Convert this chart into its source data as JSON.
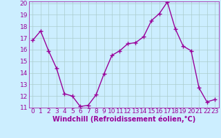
{
  "x": [
    0,
    1,
    2,
    3,
    4,
    5,
    6,
    7,
    8,
    9,
    10,
    11,
    12,
    13,
    14,
    15,
    16,
    17,
    18,
    19,
    20,
    21,
    22,
    23
  ],
  "y": [
    16.8,
    17.6,
    15.9,
    14.4,
    12.2,
    12.0,
    11.1,
    11.2,
    12.1,
    13.9,
    15.5,
    15.9,
    16.5,
    16.6,
    17.1,
    18.5,
    19.1,
    20.1,
    17.8,
    16.3,
    15.9,
    12.7,
    11.5,
    11.7
  ],
  "line_color": "#990099",
  "marker": "+",
  "marker_size": 4,
  "marker_lw": 1.0,
  "bg_color": "#cceeff",
  "grid_color": "#aacccc",
  "xlabel": "Windchill (Refroidissement éolien,°C)",
  "xlabel_color": "#990099",
  "tick_color": "#990099",
  "ylim": [
    11,
    20
  ],
  "xlim_min": -0.5,
  "xlim_max": 23.5,
  "yticks": [
    11,
    12,
    13,
    14,
    15,
    16,
    17,
    18,
    19,
    20
  ],
  "xticks": [
    0,
    1,
    2,
    3,
    4,
    5,
    6,
    7,
    8,
    9,
    10,
    11,
    12,
    13,
    14,
    15,
    16,
    17,
    18,
    19,
    20,
    21,
    22,
    23
  ],
  "tick_fontsize": 6.5,
  "xlabel_fontsize": 7.0,
  "line_width": 1.0
}
